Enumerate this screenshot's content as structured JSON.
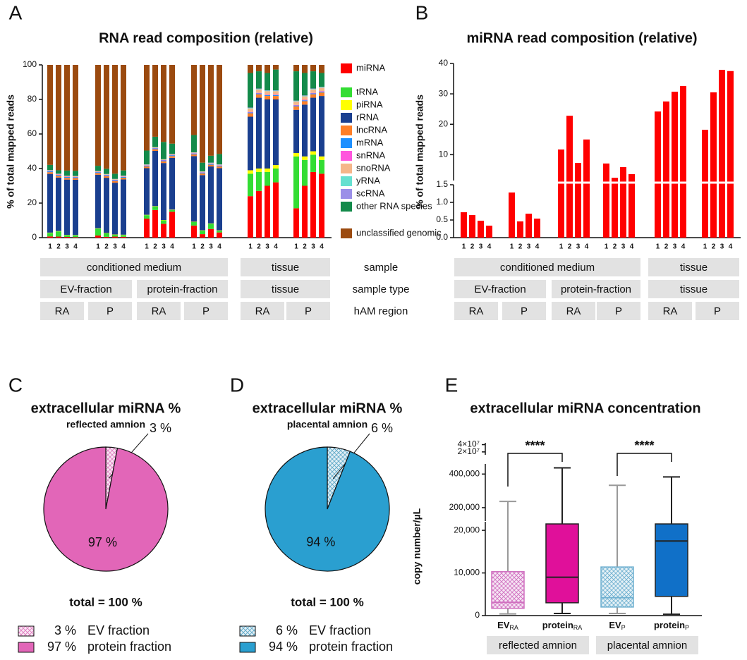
{
  "chart_data": [
    {
      "panel": "A",
      "type": "stacked_bar",
      "title": "RNA read composition (relative)",
      "ylabel": "% of total mapped reads",
      "categories": [
        "1",
        "2",
        "3",
        "4",
        "1",
        "2",
        "3",
        "4",
        "1",
        "2",
        "3",
        "4",
        "1",
        "2",
        "3",
        "4",
        "1",
        "2",
        "3",
        "4",
        "1",
        "2",
        "3",
        "4"
      ],
      "ylim": [
        0,
        100
      ],
      "yticks": [
        0,
        20,
        40,
        60,
        80,
        100
      ],
      "series": [
        {
          "name": "miRNA",
          "color": "#ff0000",
          "values": [
            0.7,
            0.6,
            0.4,
            0.3,
            1.2,
            0.45,
            0.6,
            0.5,
            11,
            16,
            8,
            15,
            7,
            2,
            5,
            3,
            24,
            27,
            30,
            32,
            17,
            30,
            38,
            37
          ]
        },
        {
          "name": "tRNA",
          "color": "#33dd33",
          "values": [
            2,
            3,
            1,
            1,
            4,
            2,
            1,
            1,
            2,
            2,
            2,
            1,
            2,
            2,
            3,
            1,
            13,
            11,
            8,
            8,
            30,
            15,
            10,
            8
          ]
        },
        {
          "name": "piRNA",
          "color": "#ffff00",
          "values": [
            0.2,
            0.2,
            0.2,
            0.2,
            0.2,
            0.2,
            0.2,
            0.2,
            0.2,
            0.2,
            0.2,
            0.2,
            0.2,
            0.2,
            0.2,
            0.2,
            2,
            2,
            2,
            2,
            2,
            2,
            2,
            2
          ]
        },
        {
          "name": "rRNA",
          "color": "#1a3f8f",
          "values": [
            34,
            31,
            32,
            32,
            31,
            32,
            30,
            32,
            27,
            32,
            33,
            30,
            38,
            32,
            33,
            36,
            31,
            41,
            40,
            38,
            25,
            30,
            31,
            35
          ]
        },
        {
          "name": "lncRNA",
          "color": "#ff7f27",
          "values": [
            1,
            1,
            1,
            1,
            1,
            1,
            1,
            1,
            1,
            1,
            1,
            1,
            1,
            1,
            1,
            1,
            2,
            2,
            2,
            2,
            2,
            2,
            2,
            2
          ]
        },
        {
          "name": "mRNA",
          "color": "#1e90ff",
          "values": [
            0.5,
            0.5,
            0.5,
            0.5,
            0.5,
            0.5,
            0.5,
            0.5,
            0.5,
            0.5,
            0.5,
            0.5,
            0.5,
            0.5,
            0.5,
            0.5,
            0.5,
            0.5,
            0.5,
            0.5,
            0.5,
            0.5,
            0.5,
            0.5
          ]
        },
        {
          "name": "snRNA",
          "color": "#ff55dd",
          "values": [
            0.2,
            0.2,
            0.2,
            0.2,
            0.2,
            0.2,
            0.2,
            0.2,
            0.2,
            0.2,
            0.2,
            0.2,
            0.2,
            0.2,
            0.2,
            0.2,
            0.3,
            0.3,
            0.3,
            0.3,
            0.3,
            0.3,
            0.3,
            0.3
          ]
        },
        {
          "name": "snoRNA",
          "color": "#f5b68a",
          "values": [
            0.3,
            0.3,
            0.3,
            0.3,
            0.3,
            0.3,
            0.3,
            0.3,
            0.3,
            0.3,
            0.3,
            0.3,
            0.3,
            0.3,
            0.3,
            0.3,
            2,
            2,
            2,
            2,
            2,
            2,
            2,
            2
          ]
        },
        {
          "name": "yRNA",
          "color": "#66e0d0",
          "values": [
            0.1,
            0.1,
            0.1,
            0.1,
            0.1,
            0.1,
            0.1,
            0.1,
            0.1,
            0.1,
            0.1,
            0.1,
            0.1,
            0.1,
            0.1,
            0.1,
            0.3,
            0.3,
            0.3,
            0.3,
            0.3,
            0.3,
            0.3,
            0.3
          ]
        },
        {
          "name": "scRNA",
          "color": "#9b8fe8",
          "values": [
            0.1,
            0.1,
            0.1,
            0.1,
            0.1,
            0.1,
            0.1,
            0.1,
            0.1,
            0.1,
            0.1,
            0.1,
            0.1,
            0.1,
            0.1,
            0.1,
            0.2,
            0.2,
            0.2,
            0.2,
            0.2,
            0.2,
            0.2,
            0.2
          ]
        },
        {
          "name": "other RNA species",
          "color": "#138a4a",
          "values": [
            3,
            2,
            3,
            3,
            3,
            3,
            3,
            3,
            8,
            6,
            10,
            6,
            10,
            5,
            4,
            6,
            20,
            10,
            10,
            12,
            17,
            13,
            10,
            8
          ]
        },
        {
          "name": "unclassified genomic",
          "color": "#9b4a0f",
          "values": [
            57.9,
            61,
            61.2,
            61.3,
            58.4,
            60.15,
            63,
            61.1,
            49.6,
            41.6,
            44.6,
            45.6,
            40.6,
            56.6,
            52.6,
            51.6,
            4.7,
            3.7,
            4.7,
            2.7,
            3.7,
            4.7,
            3.7,
            4.7
          ]
        }
      ],
      "annotation_rows": [
        {
          "label": "sample",
          "cells": [
            "conditioned medium",
            "tissue"
          ]
        },
        {
          "label": "sample type",
          "cells": [
            "EV-fraction",
            "protein-fraction",
            "tissue"
          ]
        },
        {
          "label": "hAM region",
          "cells": [
            "RA",
            "P",
            "RA",
            "P",
            "RA",
            "P"
          ]
        }
      ]
    },
    {
      "panel": "B",
      "type": "bar",
      "title": "miRNA read composition (relative)",
      "ylabel": "% of total mapped reads",
      "color": "#ff0000",
      "categories": [
        "1",
        "2",
        "3",
        "4",
        "1",
        "2",
        "3",
        "4",
        "1",
        "2",
        "3",
        "4",
        "1",
        "2",
        "3",
        "4",
        "1",
        "2",
        "3",
        "4",
        "1",
        "2",
        "3",
        "4"
      ],
      "values": [
        0.72,
        0.64,
        0.48,
        0.34,
        1.28,
        0.46,
        0.68,
        0.54,
        11.7,
        22.8,
        7.3,
        15,
        7.1,
        2.4,
        5.9,
        3.6,
        24.2,
        27.5,
        30.7,
        32.6,
        18.2,
        30.5,
        37.9,
        37.5
      ],
      "axis_break": {
        "lower_ylim": [
          0,
          1.5
        ],
        "lower_yticks": [
          {
            "value": 0,
            "label": "0.0"
          },
          0.5,
          {
            "value": 1,
            "label": "1.0"
          },
          1.5
        ],
        "upper_ylim": [
          1.5,
          40
        ],
        "upper_yticks": [
          10,
          20,
          30,
          40
        ]
      },
      "annotation_rows": [
        {
          "cells": [
            "conditioned medium",
            "tissue"
          ]
        },
        {
          "cells": [
            "EV-fraction",
            "protein-fraction",
            "tissue"
          ]
        },
        {
          "cells": [
            "RA",
            "P",
            "RA",
            "P",
            "RA",
            "P"
          ]
        }
      ]
    },
    {
      "panel": "C",
      "type": "pie",
      "title": "extracellular miRNA %",
      "subtitle": "reflected amnion",
      "categories": [
        "EV fraction",
        "protein fraction"
      ],
      "values": [
        3,
        97
      ],
      "value_labels": [
        "3 %",
        "97 %"
      ],
      "colors": [
        "#e07cc0",
        "#e266b8"
      ],
      "hatch": [
        true,
        false
      ],
      "footer": "total = 100 %"
    },
    {
      "panel": "D",
      "type": "pie",
      "title": "extracellular miRNA %",
      "subtitle": "placental amnion",
      "categories": [
        "EV fraction",
        "protein fraction"
      ],
      "values": [
        6,
        94
      ],
      "value_labels": [
        "6 %",
        "94 %"
      ],
      "colors": [
        "#5fa8c8",
        "#2a9fd0"
      ],
      "hatch": [
        true,
        false
      ],
      "footer": "total = 100 %"
    },
    {
      "panel": "E",
      "type": "box",
      "title": "extracellular miRNA concentration",
      "ylabel": "copy number/µL",
      "categories": [
        "EV",
        "protein",
        "EV",
        "protein"
      ],
      "category_subscripts": [
        "RA",
        "RA",
        "P",
        "P"
      ],
      "groups": [
        "reflected amnion",
        "placental amnion"
      ],
      "significance": [
        "****",
        "****"
      ],
      "boxes": [
        {
          "min": 400,
          "q1": 1700,
          "median": 3100,
          "q3": 10300,
          "max": 237000,
          "color": "#d070c0",
          "hatch": true
        },
        {
          "min": 500,
          "q1": 3000,
          "median": 9000,
          "q3": 21500,
          "max": 437000,
          "color": "#e0109a",
          "hatch": false
        },
        {
          "min": 500,
          "q1": 2000,
          "median": 4200,
          "q3": 11400,
          "max": 333000,
          "color": "#6fb0d0",
          "hatch": true
        },
        {
          "min": 300,
          "q1": 4500,
          "median": 17500,
          "q3": 21500,
          "max": 383000,
          "color": "#1070c8",
          "hatch": false
        }
      ],
      "segments": [
        {
          "ylim": [
            0,
            22000
          ],
          "yticks": [
            0,
            {
              "value": 10000,
              "label": "10,000"
            },
            {
              "value": 20000,
              "label": "20,000"
            }
          ]
        },
        {
          "ylim": [
            120000,
            460000
          ],
          "yticks": [
            {
              "value": 200000,
              "label": "200,000"
            },
            {
              "value": 400000,
              "label": "400,000"
            }
          ]
        },
        {
          "ylim": [
            12000000,
            45000000
          ],
          "yticks": [
            {
              "value": 20000000,
              "label": "2×10⁷"
            },
            {
              "value": 40000000,
              "label": "4×10⁷"
            }
          ]
        }
      ]
    }
  ]
}
